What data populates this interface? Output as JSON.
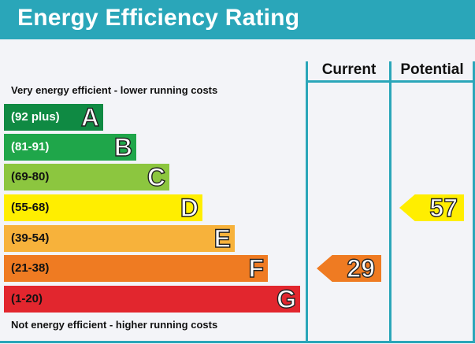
{
  "title": "Energy Efficiency Rating",
  "columns": {
    "current": "Current",
    "potential": "Potential"
  },
  "notes": {
    "top": "Very energy efficient - lower running costs",
    "bottom": "Not energy efficient - higher running costs"
  },
  "bands": [
    {
      "range": "(92 plus)",
      "letter": "A",
      "color": "#0f8a43",
      "text_color": "#ffffff"
    },
    {
      "range": "(81-91)",
      "letter": "B",
      "color": "#1fa64a",
      "text_color": "#ffffff"
    },
    {
      "range": "(69-80)",
      "letter": "C",
      "color": "#8cc63f",
      "text_color": "#111111"
    },
    {
      "range": "(55-68)",
      "letter": "D",
      "color": "#ffee00",
      "text_color": "#111111"
    },
    {
      "range": "(39-54)",
      "letter": "E",
      "color": "#f7b23b",
      "text_color": "#111111"
    },
    {
      "range": "(21-38)",
      "letter": "F",
      "color": "#ef7b22",
      "text_color": "#111111"
    },
    {
      "range": "(1-20)",
      "letter": "G",
      "color": "#e2262e",
      "text_color": "#111111"
    }
  ],
  "current": {
    "value": "29",
    "band": "F",
    "color": "#ef7b22"
  },
  "potential": {
    "value": "57",
    "band": "D",
    "color": "#ffee00"
  }
}
